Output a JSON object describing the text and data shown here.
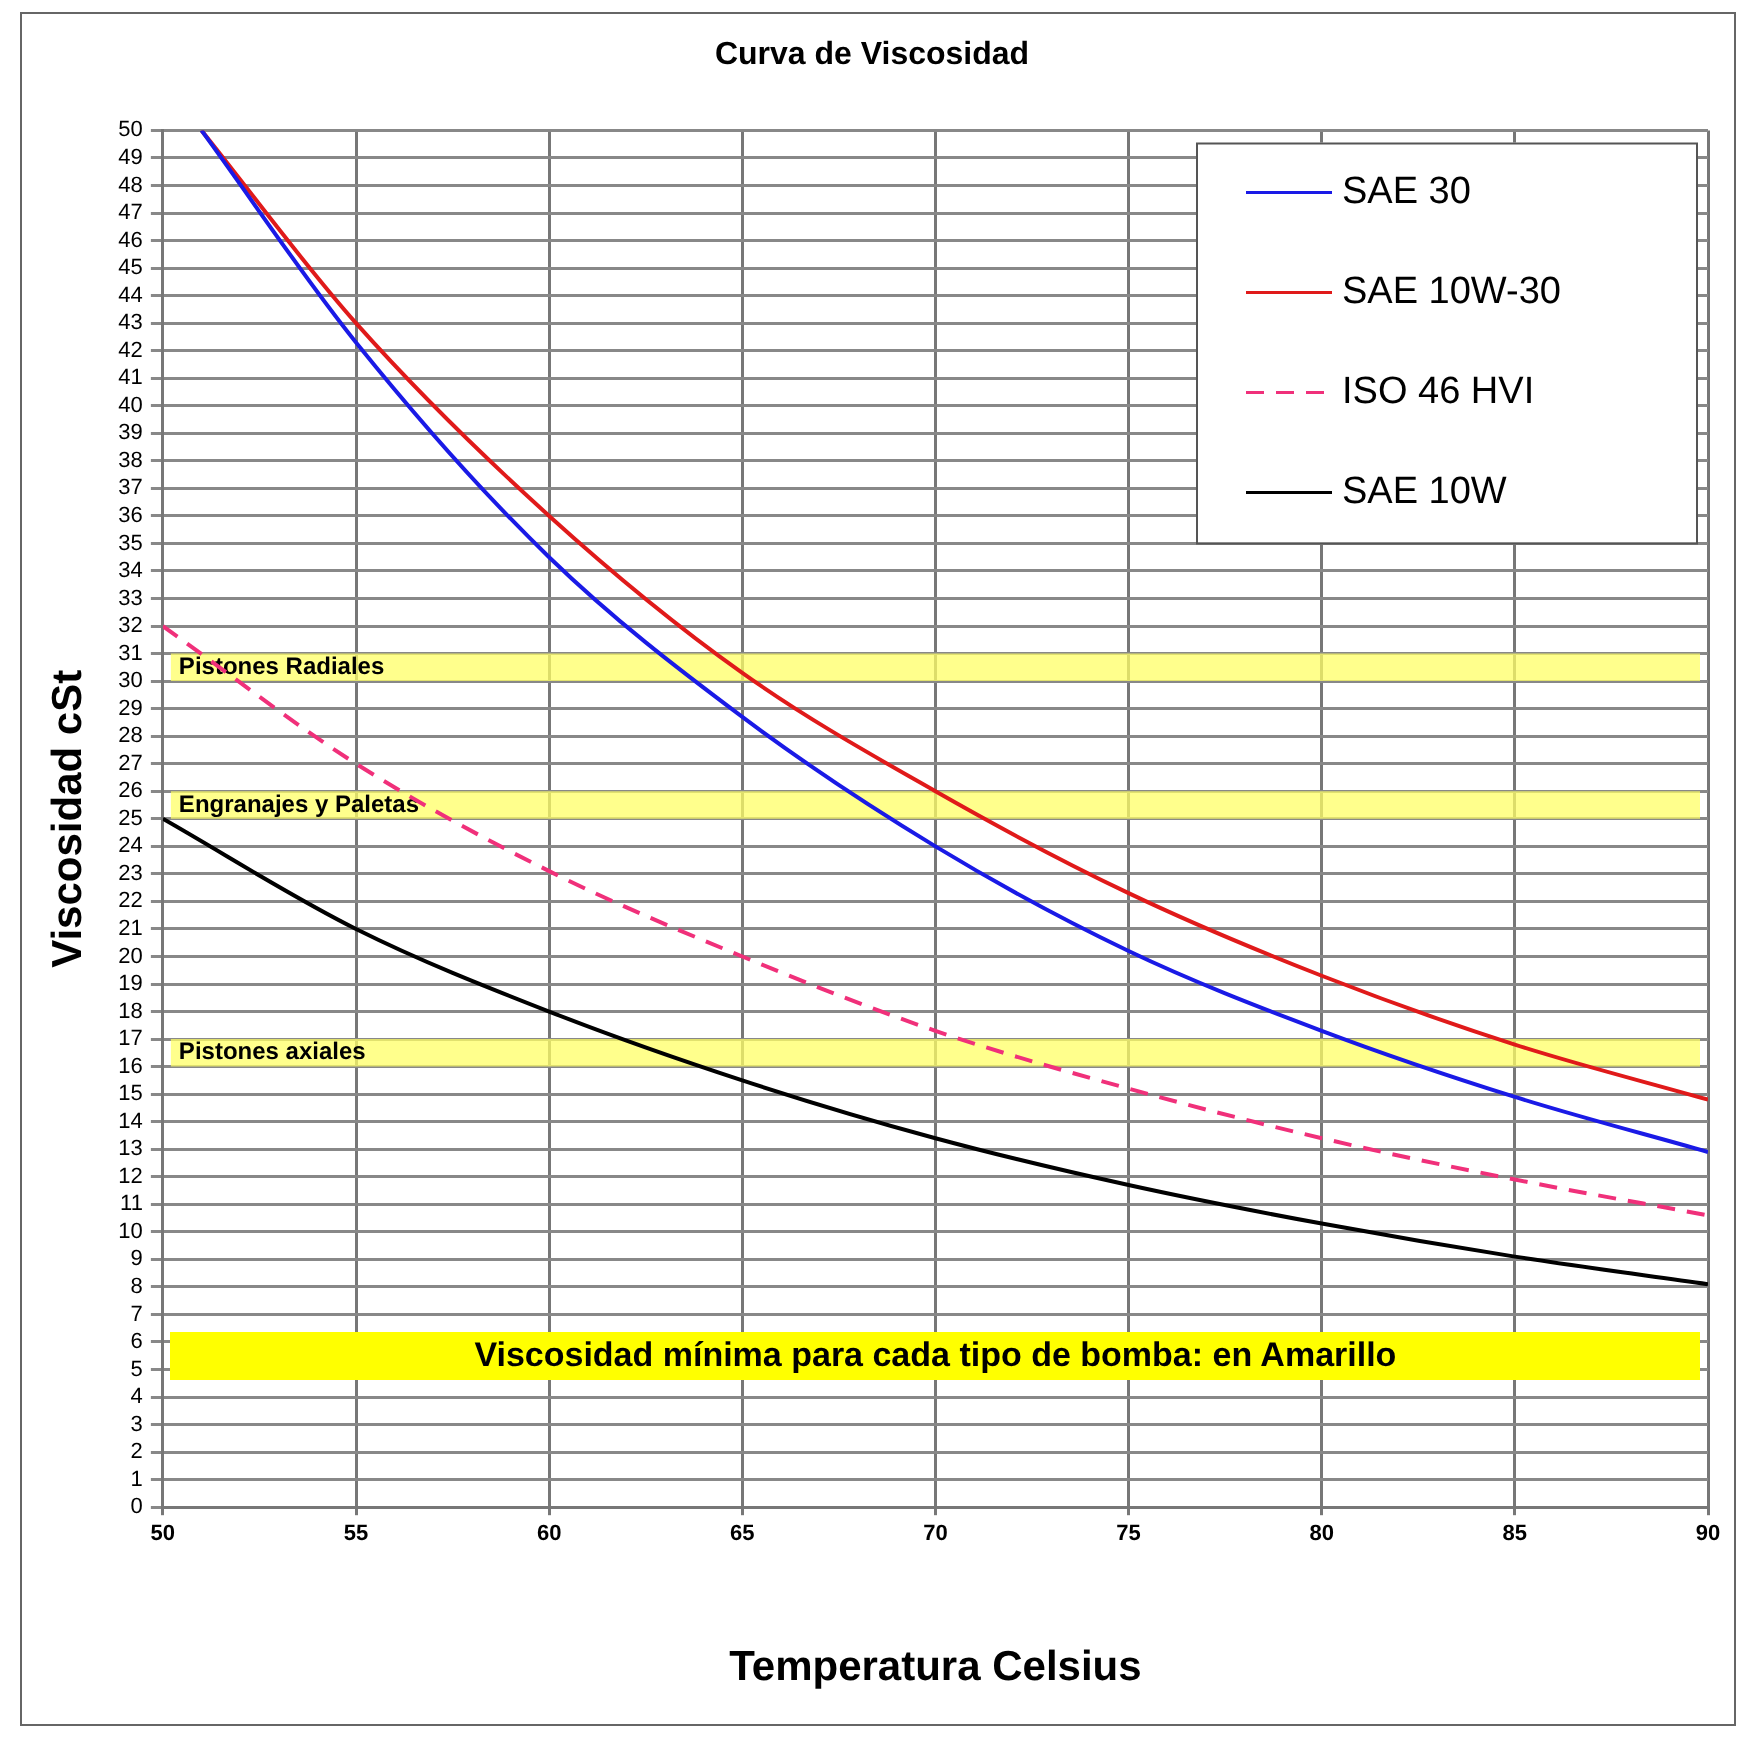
{
  "chart_data": {
    "type": "line",
    "title": "Curva de Viscosidad",
    "xlabel": "Temperatura Celsius",
    "ylabel": "Viscosidad cSt",
    "xlim": [
      50,
      90
    ],
    "xticks": [
      50,
      55,
      60,
      65,
      70,
      75,
      80,
      85,
      90
    ],
    "ylim": [
      0,
      50
    ],
    "yticks": [
      0,
      1,
      2,
      3,
      4,
      5,
      6,
      7,
      8,
      9,
      10,
      11,
      12,
      13,
      14,
      15,
      16,
      17,
      18,
      19,
      20,
      21,
      22,
      23,
      24,
      25,
      26,
      27,
      28,
      29,
      30,
      31,
      32,
      33,
      34,
      35,
      36,
      37,
      38,
      39,
      40,
      41,
      42,
      43,
      44,
      45,
      46,
      47,
      48,
      49,
      50
    ],
    "grid": true,
    "legend": "top right",
    "marker": "none",
    "series": [
      {
        "name": "SAE 30",
        "color": "#1a1ae6",
        "line_style": "solid",
        "x": [
          51,
          55,
          60,
          65,
          70,
          75,
          80,
          85,
          90
        ],
        "values": [
          50,
          42.3,
          34.5,
          28.7,
          24.0,
          20.2,
          17.3,
          14.9,
          12.9
        ]
      },
      {
        "name": "SAE 10W-30",
        "color": "#e01a1a",
        "line_style": "solid",
        "x": [
          51,
          55,
          60,
          65,
          70,
          75,
          80,
          85,
          90
        ],
        "values": [
          50,
          43.0,
          36.0,
          30.3,
          26.0,
          22.3,
          19.3,
          16.8,
          14.8
        ]
      },
      {
        "name": "ISO 46 HVI",
        "color": "#f0307a",
        "line_style": "dashed",
        "x": [
          50,
          55,
          60,
          65,
          70,
          75,
          80,
          85,
          90
        ],
        "values": [
          32.0,
          27.0,
          23.1,
          20.0,
          17.3,
          15.2,
          13.4,
          11.9,
          10.6
        ]
      },
      {
        "name": "SAE 10W",
        "color": "#000000",
        "line_style": "solid",
        "x": [
          50,
          55,
          60,
          65,
          70,
          75,
          80,
          85,
          90
        ],
        "values": [
          25.0,
          21.0,
          18.0,
          15.5,
          13.4,
          11.7,
          10.3,
          9.1,
          8.1
        ]
      }
    ],
    "bands": [
      {
        "axis": "y",
        "from": 30,
        "to": 31,
        "label": "Pistones Radiales",
        "color": "#ffff66"
      },
      {
        "axis": "y",
        "from": 25,
        "to": 26,
        "label": "Engranajes y Paletas",
        "color": "#ffff66"
      },
      {
        "axis": "y",
        "from": 16,
        "to": 17,
        "label": "Pistones axiales",
        "color": "#ffff66"
      }
    ],
    "annotations": [
      "Viscosidad mínima para cada tipo de bomba: en Amarillo"
    ]
  }
}
